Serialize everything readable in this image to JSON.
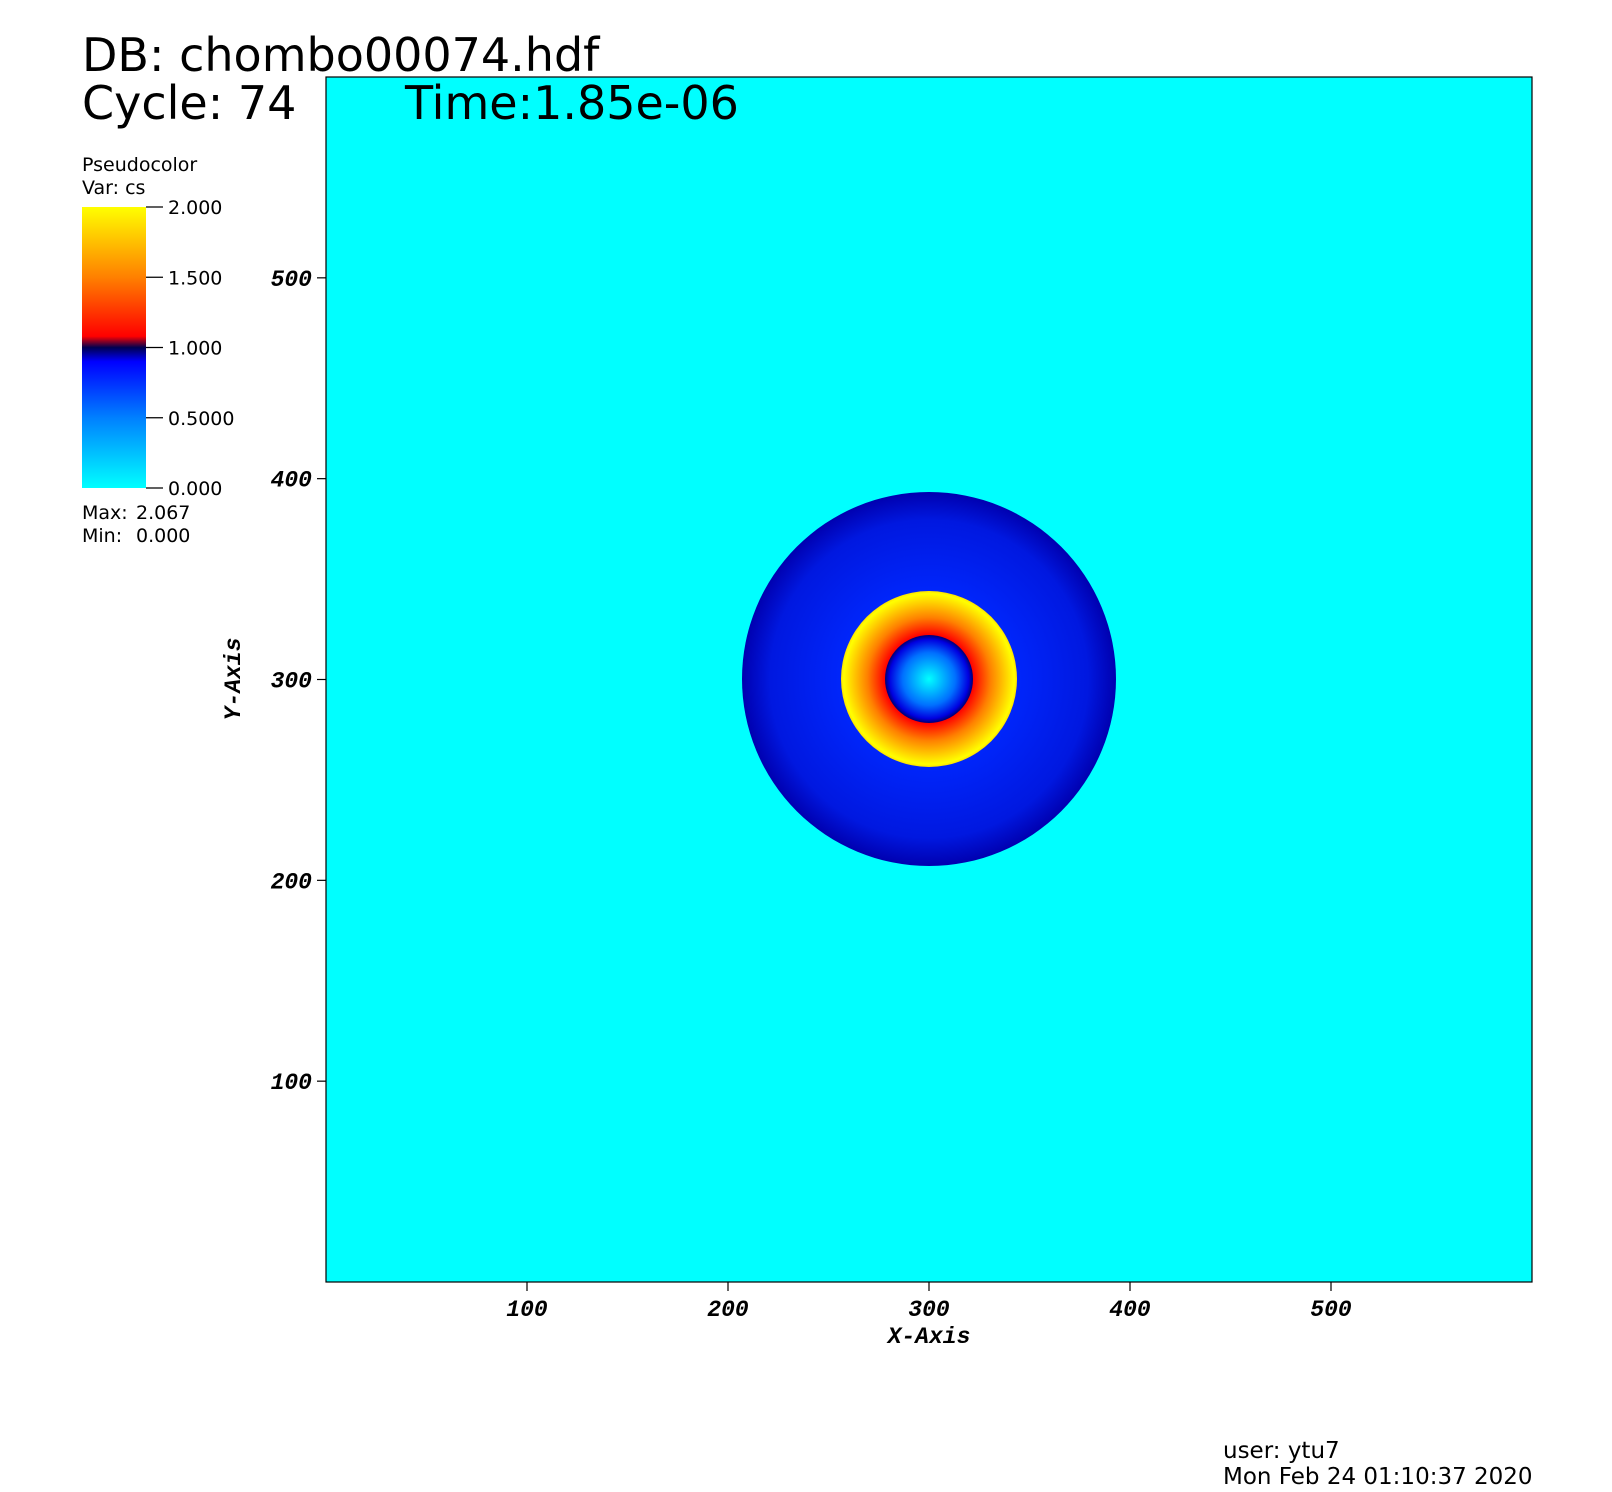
{
  "chart_data": {
    "type": "pseudocolor",
    "database": "DB: chombo00074.hdf",
    "cycle": "Cycle: 74",
    "time": "Time:1.85e-06",
    "xlabel": "X-Axis",
    "ylabel": "Y-Axis",
    "xlim": [
      0,
      600
    ],
    "ylim": [
      0,
      600
    ],
    "xticks": [
      100,
      200,
      300,
      400,
      500
    ],
    "yticks": [
      100,
      200,
      300,
      400,
      500
    ],
    "legend": {
      "title": "Pseudocolor",
      "variable": "Var: cs",
      "lim": [
        0,
        2
      ],
      "ticks": [
        {
          "value": 0,
          "label": "0.000"
        },
        {
          "value": 0.5,
          "label": "0.5000"
        },
        {
          "value": 1,
          "label": "1.000"
        },
        {
          "value": 1.5,
          "label": "1.500"
        },
        {
          "value": 2,
          "label": "2.000"
        }
      ],
      "max_text": "Max:",
      "max": 2.067,
      "min_text": "Min:",
      "min": {
        "value": 0,
        "label": "0.000"
      }
    },
    "user": "user: ytu7",
    "date": "Mon Feb 24 01:10:37 2020"
  }
}
